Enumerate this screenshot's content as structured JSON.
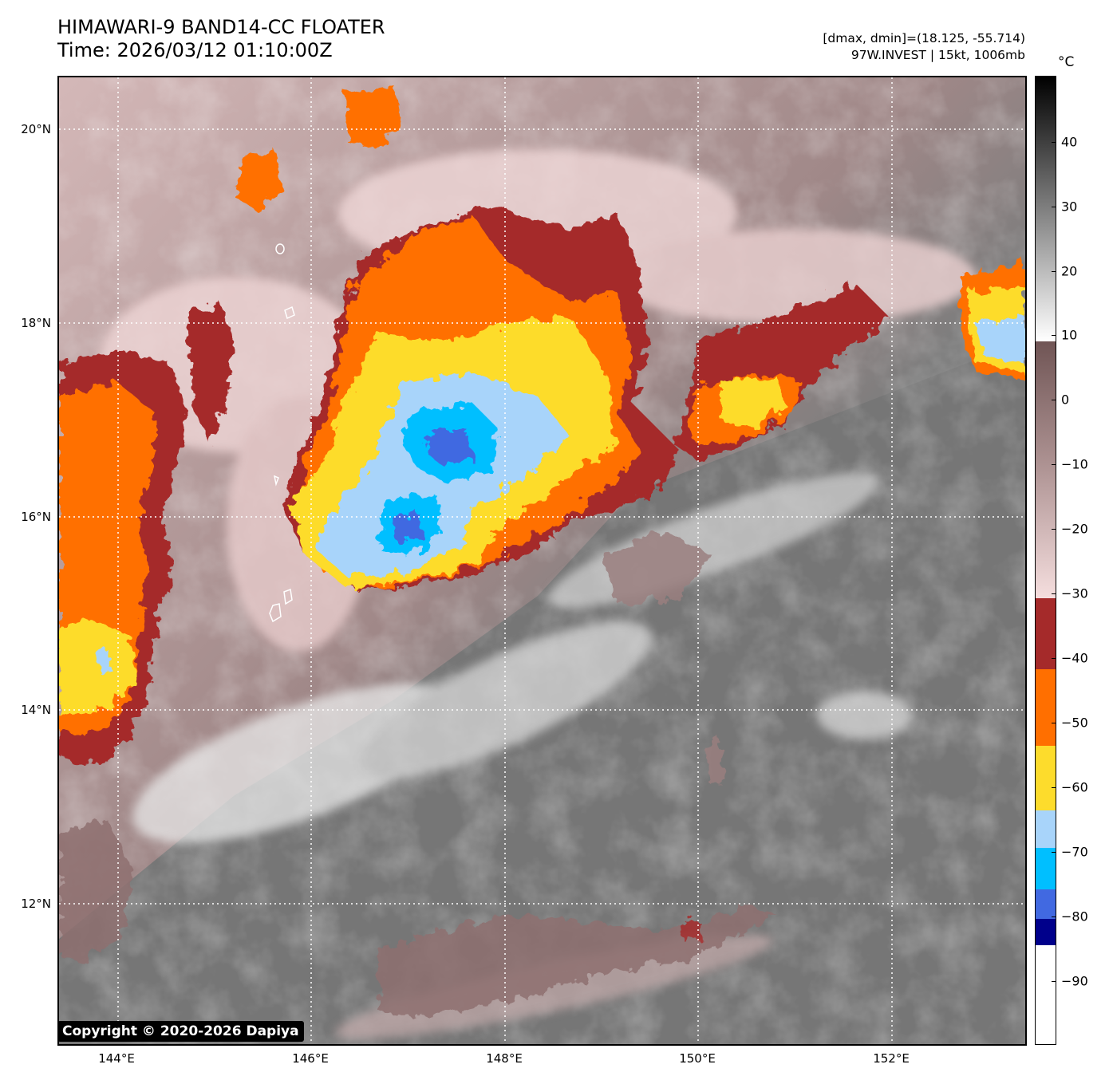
{
  "header": {
    "title_line1": "HIMAWARI-9 BAND14-CC FLOATER",
    "title_line2": "Time: 2026/03/12 01:10:00Z",
    "info_line1": "[dmax, dmin]=(18.125, -55.714)",
    "info_line2": "97W.INVEST | 15kt, 1006mb"
  },
  "colorbar": {
    "unit": "°C",
    "tick_labels": [
      "40",
      "30",
      "20",
      "10",
      "0",
      "−10",
      "−20",
      "−30",
      "−40",
      "−50",
      "−60",
      "−70",
      "−80",
      "−90"
    ],
    "range": [
      -100,
      50
    ],
    "colors": {
      "above_10": "grayscale white-to-black",
      "10_to_-30": "brown-to-pink gradient",
      "-30_to_-40": "#a52a2a",
      "-40_to_-50": "#ff6f00",
      "-50_to_-60": "#fddc2c",
      "-60_to_-66": "#a8d4fa",
      "-66_to_-72": "#00bfff",
      "-72_to_-80": "#4169e1",
      "-80_to_-84": "#00008b",
      "below_-84": "#ffffff"
    }
  },
  "map": {
    "lat_labels": [
      "20°N",
      "18°N",
      "16°N",
      "14°N",
      "12°N"
    ],
    "lon_labels": [
      "144°E",
      "146°E",
      "148°E",
      "150°E",
      "152°E"
    ],
    "gridlines": "dotted white"
  },
  "copyright": "Copyright © 2020-2026 Dapiya"
}
